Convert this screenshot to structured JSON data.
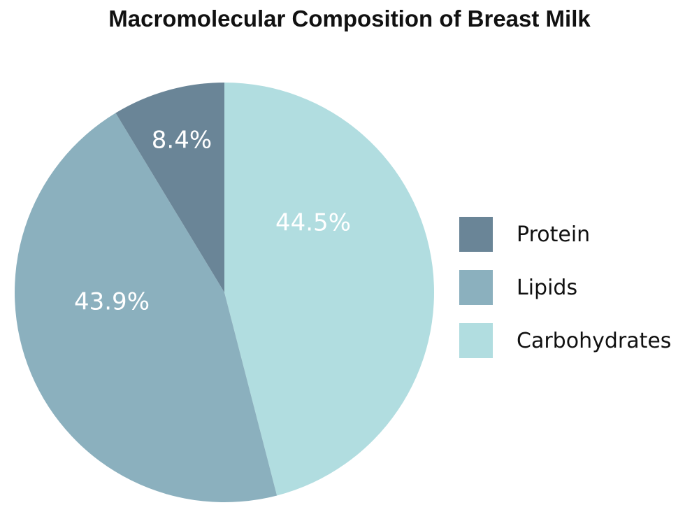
{
  "title": "Macromolecular Composition of Breast Milk",
  "legend": [
    {
      "label": "Protein",
      "color": "#6a8597"
    },
    {
      "label": "Lipids",
      "color": "#8bb0be"
    },
    {
      "label": "Carbohydrates",
      "color": "#b1dde0"
    }
  ],
  "slices": [
    {
      "name": "Carbohydrates",
      "label": "44.5%",
      "color": "#b1dde0"
    },
    {
      "name": "Lipids",
      "label": "43.9%",
      "color": "#8bb0be"
    },
    {
      "name": "Protein",
      "label": "8.4%",
      "color": "#6a8597"
    }
  ],
  "chart_data": {
    "type": "pie",
    "title": "Macromolecular Composition of Breast Milk",
    "categories": [
      "Carbohydrates",
      "Lipids",
      "Protein"
    ],
    "values": [
      44.5,
      43.9,
      8.4
    ],
    "unit": "%",
    "colors": [
      "#b1dde0",
      "#8bb0be",
      "#6a8597"
    ],
    "legend_position": "right",
    "legend_order": [
      "Protein",
      "Lipids",
      "Carbohydrates"
    ]
  }
}
